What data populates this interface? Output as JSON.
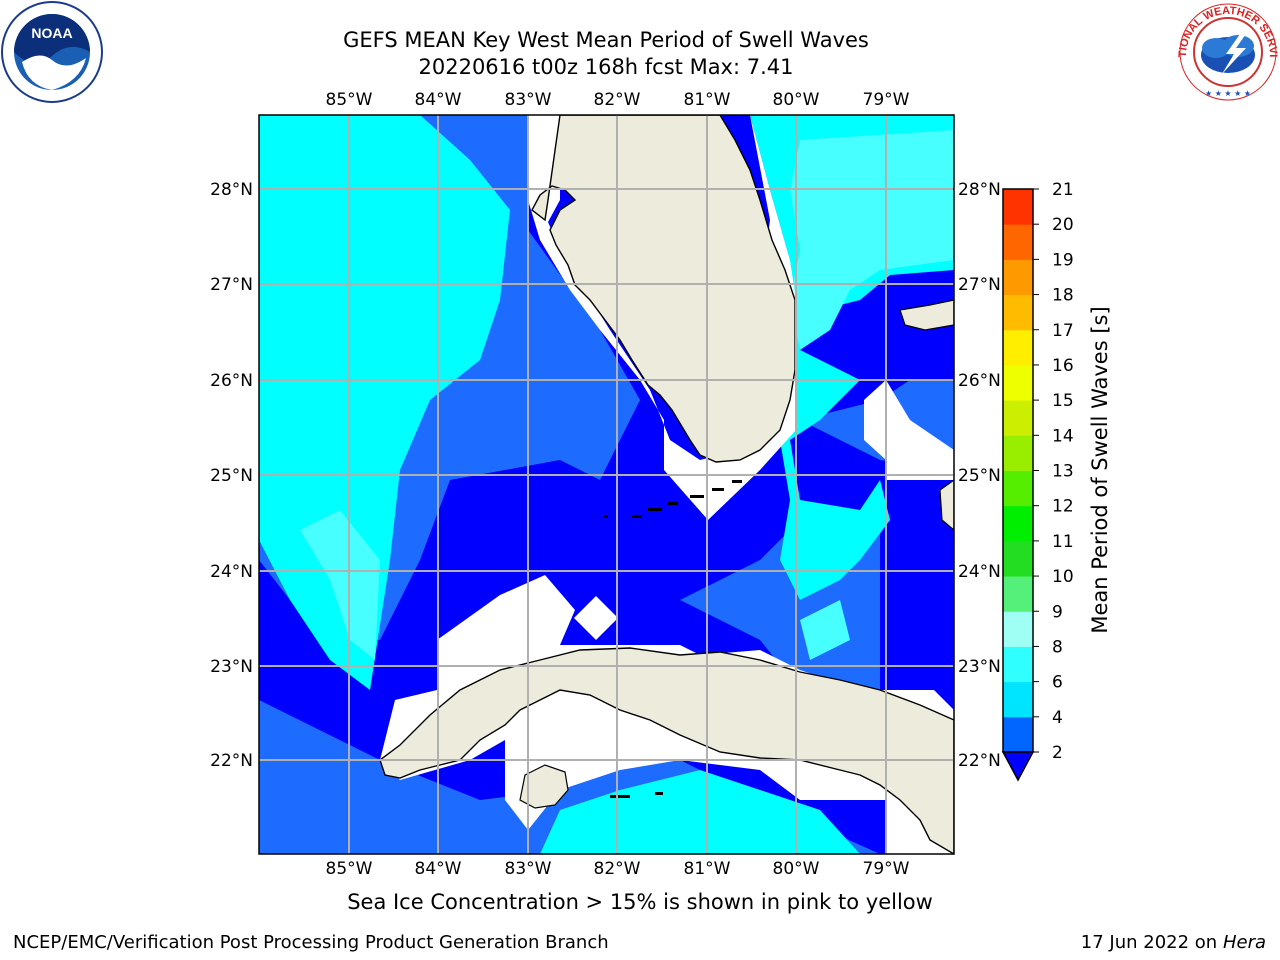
{
  "title": {
    "line1": "GEFS MEAN Key West Mean Period of Swell Waves",
    "line2": "20220616 t00z 168h fcst   Max: 7.41"
  },
  "logos": {
    "left": "NOAA",
    "right": "NATIONAL WEATHER SERVICE"
  },
  "map": {
    "lon_ticks": [
      "85°W",
      "84°W",
      "83°W",
      "82°W",
      "81°W",
      "80°W",
      "79°W"
    ],
    "lat_ticks": [
      "28°N",
      "27°N",
      "26°N",
      "25°N",
      "24°N",
      "23°N",
      "22°N"
    ],
    "region": "Key West",
    "colors": {
      "land": "#ecebdc",
      "level_2_4": "#0000ff",
      "level_4_6": "#00ffff",
      "level_6_8": "#48ffff",
      "level_8_9": "#80ffff",
      "mid_blue": "#1e6bff",
      "grid": "#b0b0b0"
    }
  },
  "colorbar": {
    "title": "Mean Period of Swell Waves [s]",
    "levels": [
      "2",
      "4",
      "6",
      "8",
      "9",
      "10",
      "11",
      "12",
      "13",
      "14",
      "15",
      "16",
      "17",
      "18",
      "19",
      "20",
      "21"
    ],
    "colors": [
      "#0066ff",
      "#00e5ff",
      "#2fffff",
      "#9ffff5",
      "#55f07a",
      "#22dd22",
      "#00ee00",
      "#55ee00",
      "#99ee00",
      "#ccee00",
      "#eeff00",
      "#ffee00",
      "#ffbb00",
      "#ff9900",
      "#ff6600",
      "#ff3300"
    ]
  },
  "footer": {
    "note": "Sea Ice Concentration > 15% is shown in pink to yellow",
    "credit": "NCEP/EMC/Verification Post Processing Product Generation Branch",
    "date": "17 Jun 2022 on",
    "machine": "Hera"
  }
}
